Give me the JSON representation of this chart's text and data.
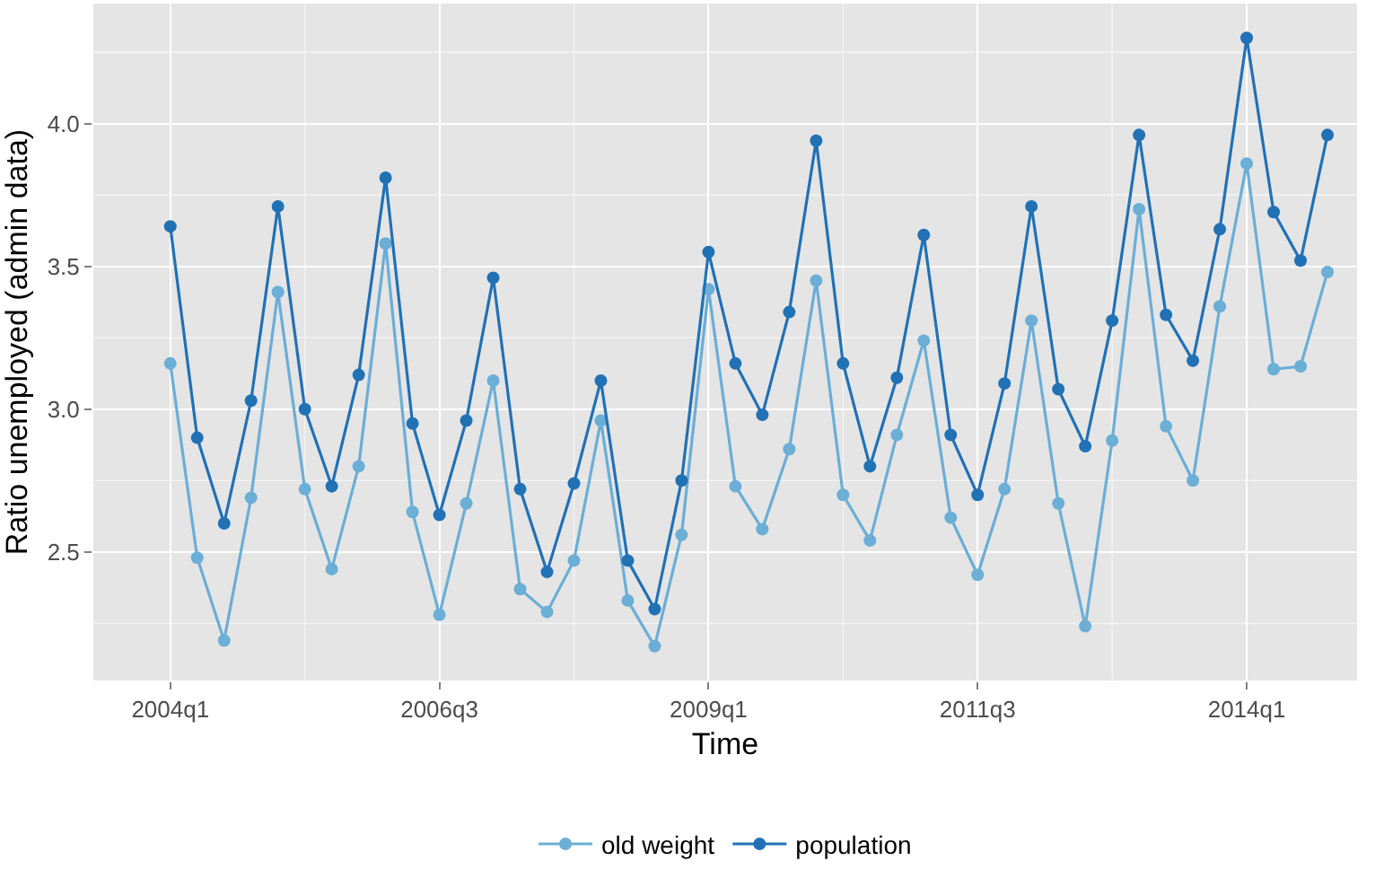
{
  "chart_data": {
    "type": "line",
    "xlabel": "Time",
    "ylabel": "Ratio unemployed (admin data)",
    "categories": [
      "2004q1",
      null,
      null,
      null,
      null,
      null,
      null,
      null,
      null,
      null,
      "2006q3",
      null,
      null,
      null,
      null,
      null,
      null,
      null,
      null,
      null,
      "2009q1",
      null,
      null,
      null,
      null,
      null,
      null,
      null,
      null,
      null,
      "2011q3",
      null,
      null,
      null,
      null,
      null,
      null,
      null,
      null,
      null,
      "2014q1",
      null,
      null,
      null
    ],
    "series": [
      {
        "name": "old weight",
        "color": "#6baed6",
        "values": [
          3.16,
          2.48,
          2.19,
          2.69,
          3.41,
          2.72,
          2.44,
          2.8,
          3.58,
          2.64,
          2.28,
          2.67,
          3.1,
          2.37,
          2.29,
          2.47,
          2.96,
          2.33,
          2.17,
          2.56,
          3.42,
          2.73,
          2.58,
          2.86,
          3.45,
          2.7,
          2.54,
          2.91,
          3.24,
          2.62,
          2.42,
          2.72,
          3.31,
          2.67,
          2.24,
          2.89,
          3.7,
          2.94,
          2.75,
          3.36,
          3.86,
          3.14,
          3.15,
          3.48
        ]
      },
      {
        "name": "population",
        "color": "#2171b5",
        "values": [
          3.64,
          2.9,
          2.6,
          3.03,
          3.71,
          3.0,
          2.73,
          3.12,
          3.81,
          2.95,
          2.63,
          2.96,
          3.46,
          2.72,
          2.43,
          2.74,
          3.1,
          2.47,
          2.3,
          2.75,
          3.55,
          3.16,
          2.98,
          3.34,
          3.94,
          3.16,
          2.8,
          3.11,
          3.61,
          2.91,
          2.7,
          3.09,
          3.71,
          3.07,
          2.87,
          3.31,
          3.96,
          3.33,
          3.17,
          3.63,
          4.3,
          3.69,
          3.52,
          3.96
        ]
      }
    ],
    "ylim": [
      2.05,
      4.42
    ],
    "yticks": [
      {
        "value": 2.5,
        "label": "2.5"
      },
      {
        "value": 3,
        "label": "3.0"
      },
      {
        "value": 3.5,
        "label": "3.5"
      },
      {
        "value": 4,
        "label": "4.0"
      }
    ],
    "grid": true,
    "legend": "bottom",
    "marker": "circle",
    "line_style": "solid"
  }
}
